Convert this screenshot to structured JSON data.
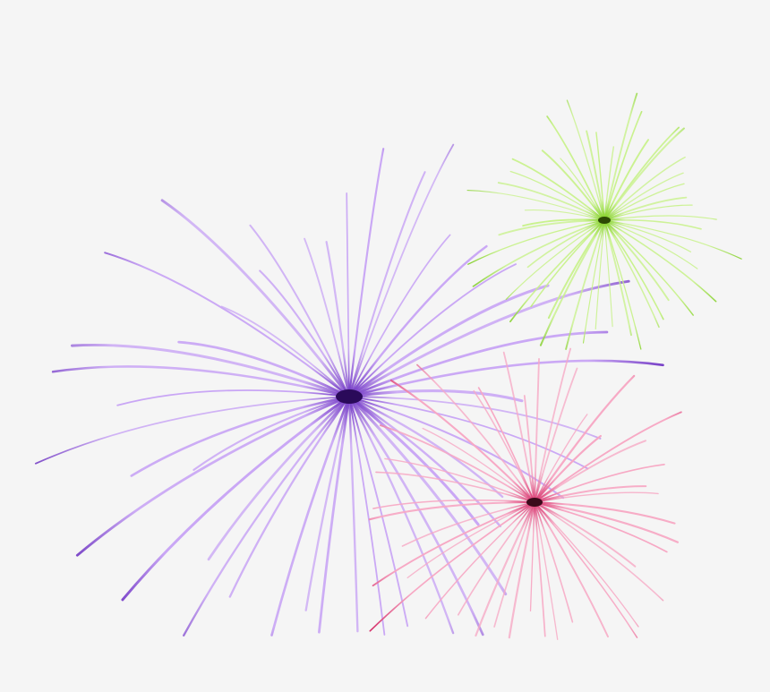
{
  "background": "#f5f5f5",
  "fireworks": [
    {
      "name": "purple-burst",
      "color_light": "#c9a6f5",
      "color_dark": "#6a2fc0",
      "core": "#2a0a5a"
    },
    {
      "name": "pink-burst",
      "color_light": "#f7a8c4",
      "color_dark": "#d6336c",
      "core": "#3a0a1a"
    },
    {
      "name": "green-burst",
      "color_light": "#c8f28a",
      "color_dark": "#7ccc1e",
      "core": "#2d4a05"
    }
  ]
}
